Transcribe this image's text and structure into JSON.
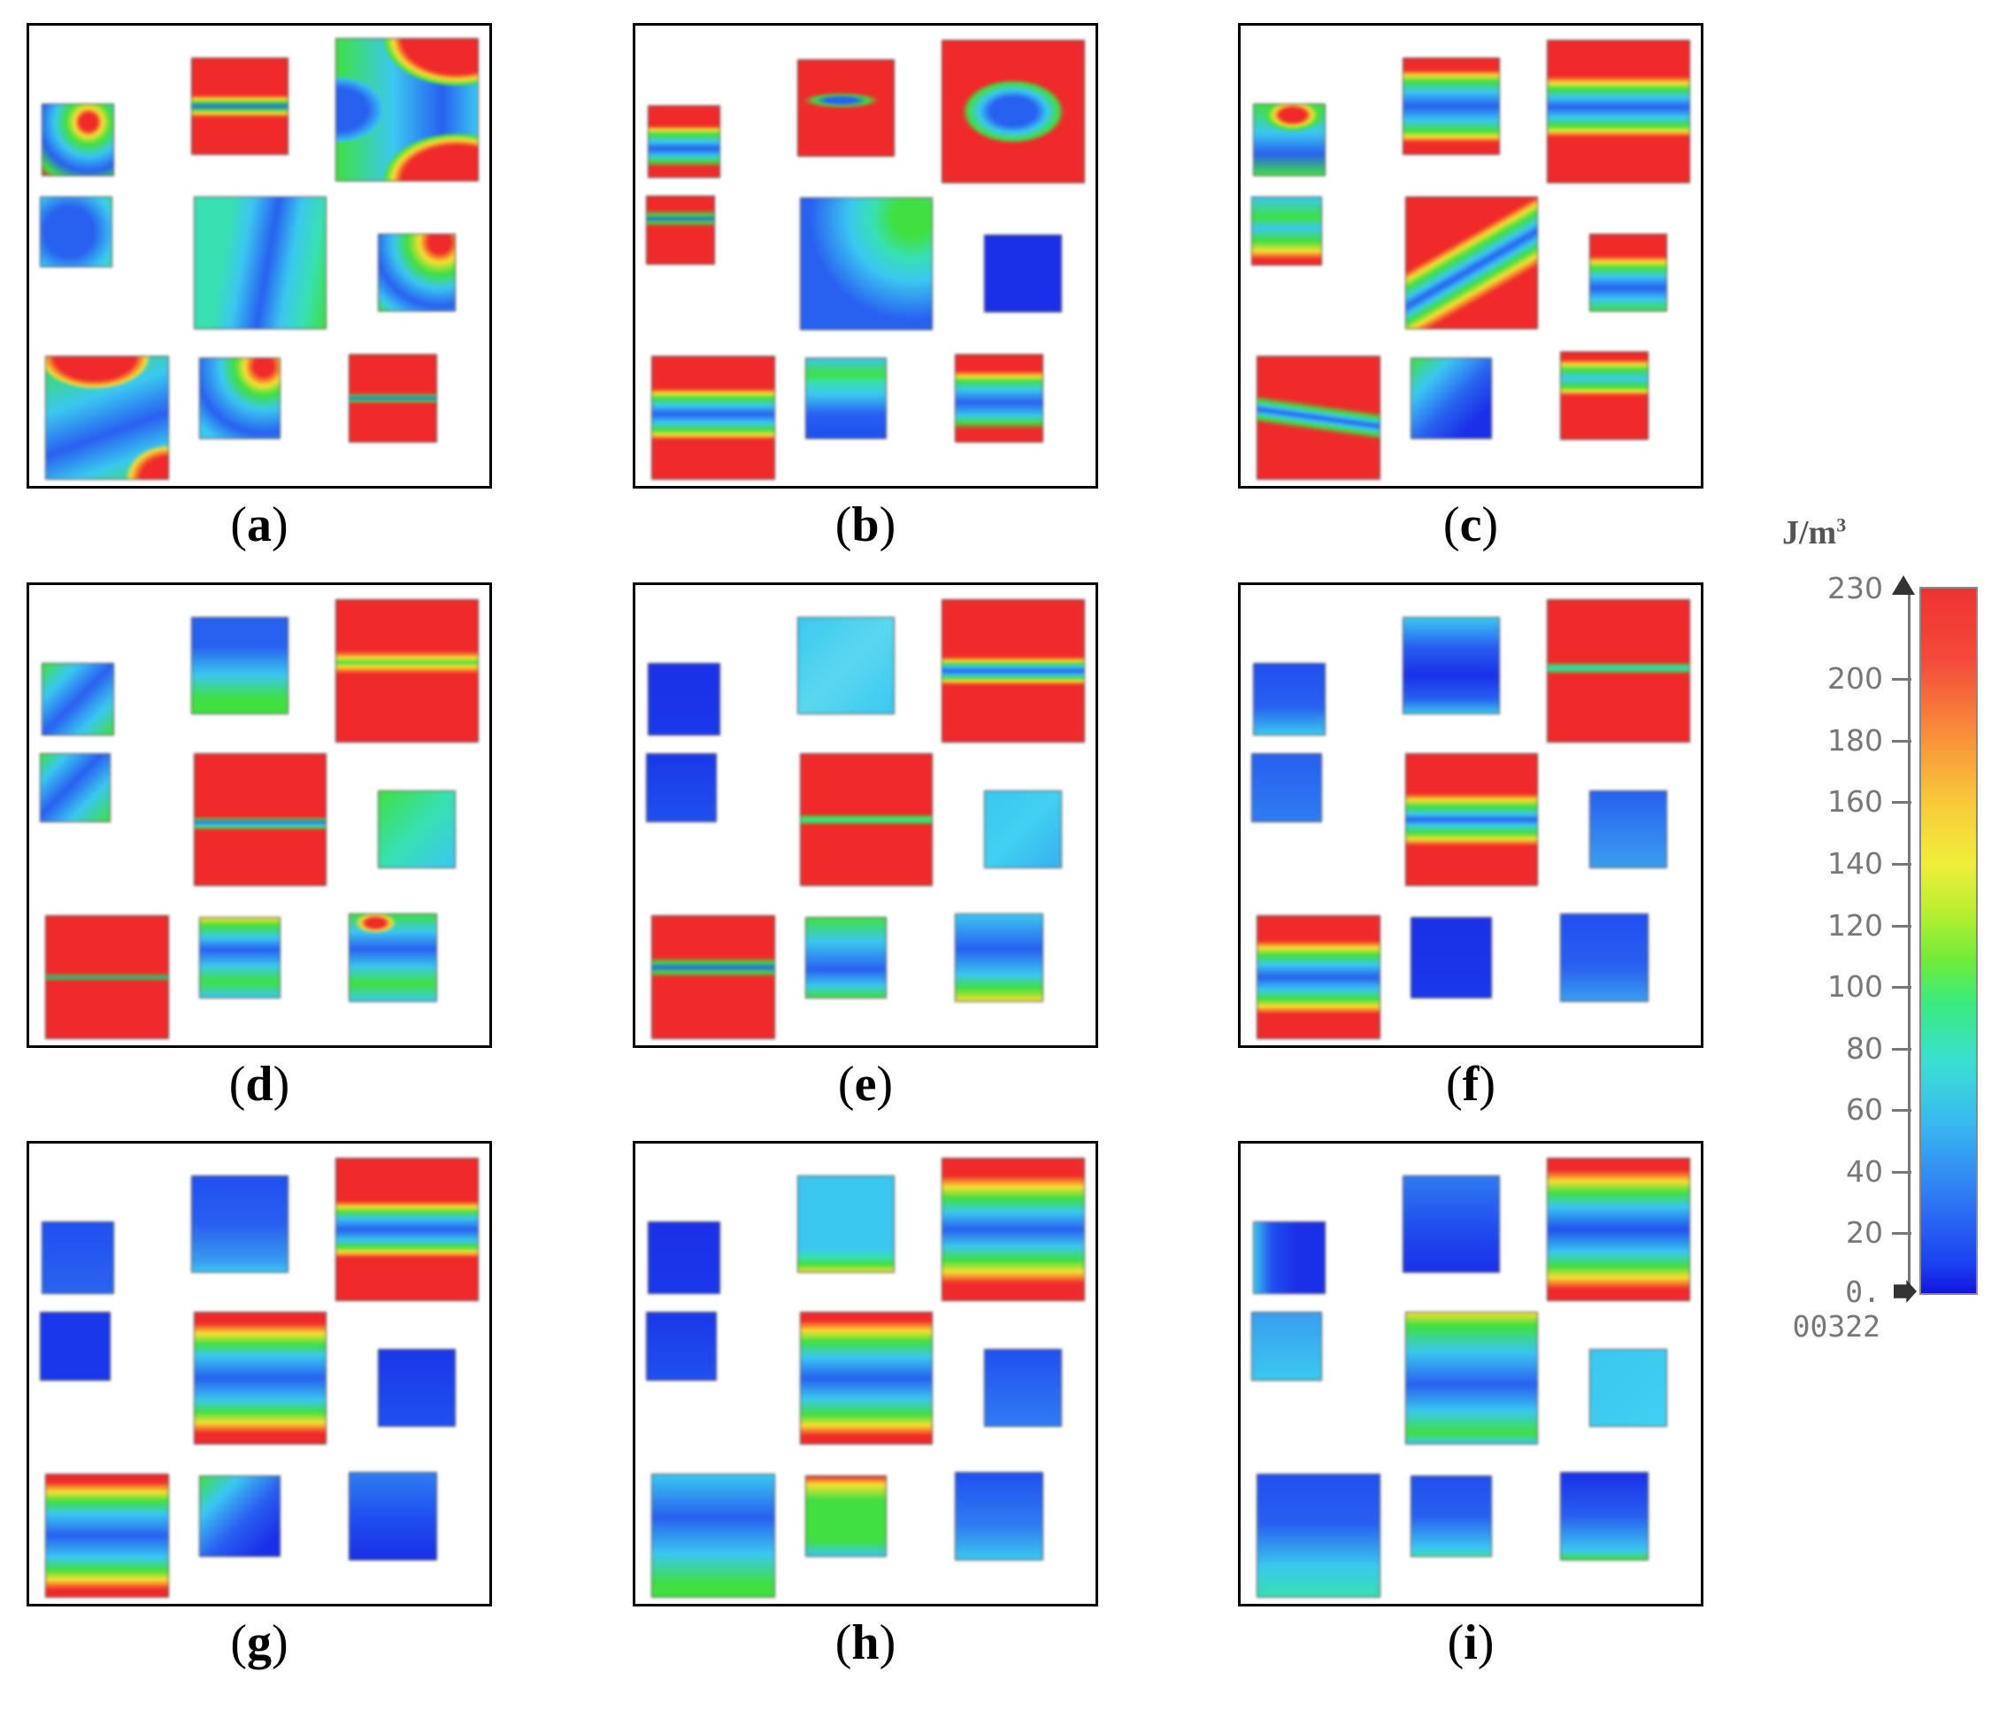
{
  "panels": [
    {
      "label": "a"
    },
    {
      "label": "b"
    },
    {
      "label": "c"
    },
    {
      "label": "d"
    },
    {
      "label": "e"
    },
    {
      "label": "f"
    },
    {
      "label": "g"
    },
    {
      "label": "h"
    },
    {
      "label": "i"
    }
  ],
  "colorbar": {
    "unit_base": "J/m",
    "unit_exp": "3",
    "max_label": "230",
    "min_label": "0. 00322",
    "ticks": [
      "200",
      "180",
      "160",
      "140",
      "120",
      "100",
      "80",
      "60",
      "40",
      "20"
    ],
    "colors": [
      "#1a1aee",
      "#1e6cf0",
      "#3ac8f0",
      "#38e0b0",
      "#40e040",
      "#c8e828",
      "#f8e030",
      "#f8a030",
      "#f03030"
    ]
  }
}
